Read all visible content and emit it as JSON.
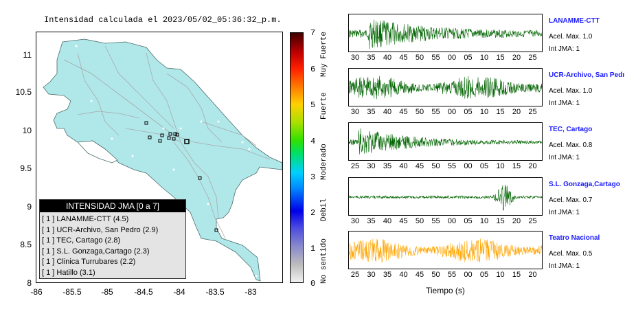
{
  "map": {
    "title": "Intensidad calculada el 2023/05/02_05:36:32_p.m.",
    "y_ticks": [
      "11",
      "10.5",
      "10",
      "9.5",
      "9",
      "8.5",
      "8"
    ],
    "x_ticks": [
      "-86",
      "-85.5",
      "-85",
      "-84.5",
      "-84",
      "-83.5",
      "-83"
    ],
    "colors": {
      "land": "#b0e8ea",
      "roads": "#a8a8a8",
      "border": "#4a6a6a"
    }
  },
  "legend": {
    "title": "INTENSIDAD JMA [0 a 7]",
    "items": [
      "[ 1 ]  LANAMME-CTT (4.5)",
      "[ 1 ]  UCR-Archivo, San Pedro (2.9)",
      "[ 1 ]  TEC, Cartago (2.8)",
      "[ 1 ]  S.L. Gonzaga,Cartago (2.3)",
      "[ 1 ]  Clinica Turrubares (2.2)",
      "[ 1 ]  Hatillo (3.1)"
    ]
  },
  "colorbar": {
    "ticks": [
      "7",
      "6",
      "5",
      "4",
      "3",
      "2",
      "1",
      "0"
    ],
    "words": [
      "Muy Fuerte",
      "Fuerte",
      "Moderado",
      "Debil",
      "No sentido"
    ]
  },
  "traces": [
    {
      "name": "LANAMME-CTT",
      "acel": "Acel. Max. 1.0",
      "int": "Int JMA: 1",
      "color": "#006400",
      "ticks": [
        "30",
        "35",
        "40",
        "45",
        "50",
        "55",
        "00",
        "05",
        "10",
        "15",
        "20",
        "25"
      ],
      "onset": 0.1
    },
    {
      "name": "UCR-Archivo, San Pedro",
      "acel": "Acel. Max. 1.0",
      "int": "Int JMA: 1",
      "color": "#006400",
      "ticks": [
        "30",
        "35",
        "40",
        "45",
        "50",
        "55",
        "00",
        "05",
        "10",
        "15",
        "20",
        "25"
      ],
      "onset": 0.0
    },
    {
      "name": "TEC, Cartago",
      "acel": "Acel. Max. 0.8",
      "int": "Int JMA: 1",
      "color": "#006400",
      "ticks": [
        "25",
        "30",
        "35",
        "40",
        "45",
        "50",
        "55",
        "00",
        "05",
        "10",
        "15",
        "20"
      ],
      "onset": 0.05
    },
    {
      "name": "S.L. Gonzaga,Cartago",
      "acel": "Acel. Max. 0.7",
      "int": "Int JMA: 1",
      "color": "#006400",
      "ticks": [
        "30",
        "35",
        "40",
        "45",
        "50",
        "55",
        "00",
        "05",
        "10",
        "15",
        "20",
        "25"
      ],
      "onset": 0.8
    },
    {
      "name": "Teatro Nacional",
      "acel": "Acel. Max. 0.5",
      "int": "Int JMA: 1",
      "color": "#ffa500",
      "ticks": [
        "25",
        "30",
        "35",
        "40",
        "45",
        "50",
        "55",
        "00",
        "05",
        "10",
        "15",
        "20"
      ],
      "onset": 0.0
    }
  ],
  "time_axis_label": "Tiempo (s)"
}
